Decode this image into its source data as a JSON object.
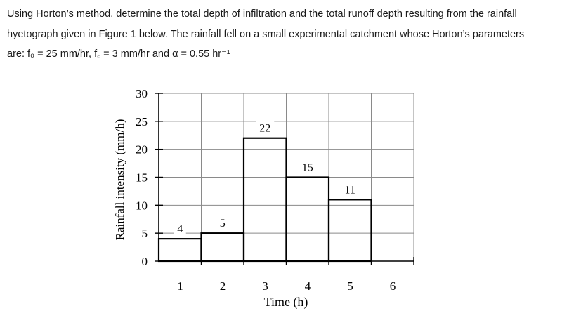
{
  "problem": {
    "line1": "Using Horton’s method, determine the total depth of infiltration and the total runoff depth resulting from the rainfall",
    "line2": "hyetograph given in Figure 1 below. The rainfall fell on a small experimental catchment whose Horton’s parameters",
    "line3": "are: f₀ = 25 mm/hr, f꜀ = 3 mm/hr and α = 0.55 hr⁻¹"
  },
  "chart_data": {
    "type": "bar",
    "categories": [
      "1",
      "2",
      "3",
      "4",
      "5"
    ],
    "values": [
      4,
      5,
      22,
      15,
      11
    ],
    "value_labels": [
      "4",
      "5",
      "22",
      "15",
      "11"
    ],
    "x_ticks": [
      "1",
      "2",
      "3",
      "4",
      "5",
      "6"
    ],
    "y_ticks": [
      "0",
      "5",
      "10",
      "15",
      "20",
      "25",
      "30"
    ],
    "xlabel": "Time (h)",
    "ylabel": "Rainfall intensity (mm/h)",
    "xlim": [
      0,
      6
    ],
    "ylim": [
      0,
      30
    ],
    "grid": true
  }
}
